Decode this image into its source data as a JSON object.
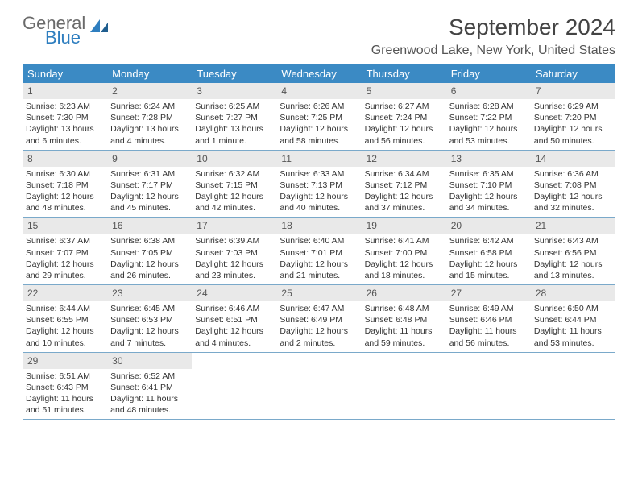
{
  "logo": {
    "word1": "General",
    "word2": "Blue"
  },
  "title": "September 2024",
  "location": "Greenwood Lake, New York, United States",
  "colors": {
    "header_bg": "#3b8ac4",
    "header_text": "#ffffff",
    "daynum_bg": "#e9e9e9",
    "border": "#7aa9ca",
    "logo_gray": "#6a6a6a",
    "logo_blue": "#2e7ebf"
  },
  "weekdays": [
    "Sunday",
    "Monday",
    "Tuesday",
    "Wednesday",
    "Thursday",
    "Friday",
    "Saturday"
  ],
  "weeks": [
    [
      {
        "n": "1",
        "sr": "Sunrise: 6:23 AM",
        "ss": "Sunset: 7:30 PM",
        "d1": "Daylight: 13 hours",
        "d2": "and 6 minutes."
      },
      {
        "n": "2",
        "sr": "Sunrise: 6:24 AM",
        "ss": "Sunset: 7:28 PM",
        "d1": "Daylight: 13 hours",
        "d2": "and 4 minutes."
      },
      {
        "n": "3",
        "sr": "Sunrise: 6:25 AM",
        "ss": "Sunset: 7:27 PM",
        "d1": "Daylight: 13 hours",
        "d2": "and 1 minute."
      },
      {
        "n": "4",
        "sr": "Sunrise: 6:26 AM",
        "ss": "Sunset: 7:25 PM",
        "d1": "Daylight: 12 hours",
        "d2": "and 58 minutes."
      },
      {
        "n": "5",
        "sr": "Sunrise: 6:27 AM",
        "ss": "Sunset: 7:24 PM",
        "d1": "Daylight: 12 hours",
        "d2": "and 56 minutes."
      },
      {
        "n": "6",
        "sr": "Sunrise: 6:28 AM",
        "ss": "Sunset: 7:22 PM",
        "d1": "Daylight: 12 hours",
        "d2": "and 53 minutes."
      },
      {
        "n": "7",
        "sr": "Sunrise: 6:29 AM",
        "ss": "Sunset: 7:20 PM",
        "d1": "Daylight: 12 hours",
        "d2": "and 50 minutes."
      }
    ],
    [
      {
        "n": "8",
        "sr": "Sunrise: 6:30 AM",
        "ss": "Sunset: 7:18 PM",
        "d1": "Daylight: 12 hours",
        "d2": "and 48 minutes."
      },
      {
        "n": "9",
        "sr": "Sunrise: 6:31 AM",
        "ss": "Sunset: 7:17 PM",
        "d1": "Daylight: 12 hours",
        "d2": "and 45 minutes."
      },
      {
        "n": "10",
        "sr": "Sunrise: 6:32 AM",
        "ss": "Sunset: 7:15 PM",
        "d1": "Daylight: 12 hours",
        "d2": "and 42 minutes."
      },
      {
        "n": "11",
        "sr": "Sunrise: 6:33 AM",
        "ss": "Sunset: 7:13 PM",
        "d1": "Daylight: 12 hours",
        "d2": "and 40 minutes."
      },
      {
        "n": "12",
        "sr": "Sunrise: 6:34 AM",
        "ss": "Sunset: 7:12 PM",
        "d1": "Daylight: 12 hours",
        "d2": "and 37 minutes."
      },
      {
        "n": "13",
        "sr": "Sunrise: 6:35 AM",
        "ss": "Sunset: 7:10 PM",
        "d1": "Daylight: 12 hours",
        "d2": "and 34 minutes."
      },
      {
        "n": "14",
        "sr": "Sunrise: 6:36 AM",
        "ss": "Sunset: 7:08 PM",
        "d1": "Daylight: 12 hours",
        "d2": "and 32 minutes."
      }
    ],
    [
      {
        "n": "15",
        "sr": "Sunrise: 6:37 AM",
        "ss": "Sunset: 7:07 PM",
        "d1": "Daylight: 12 hours",
        "d2": "and 29 minutes."
      },
      {
        "n": "16",
        "sr": "Sunrise: 6:38 AM",
        "ss": "Sunset: 7:05 PM",
        "d1": "Daylight: 12 hours",
        "d2": "and 26 minutes."
      },
      {
        "n": "17",
        "sr": "Sunrise: 6:39 AM",
        "ss": "Sunset: 7:03 PM",
        "d1": "Daylight: 12 hours",
        "d2": "and 23 minutes."
      },
      {
        "n": "18",
        "sr": "Sunrise: 6:40 AM",
        "ss": "Sunset: 7:01 PM",
        "d1": "Daylight: 12 hours",
        "d2": "and 21 minutes."
      },
      {
        "n": "19",
        "sr": "Sunrise: 6:41 AM",
        "ss": "Sunset: 7:00 PM",
        "d1": "Daylight: 12 hours",
        "d2": "and 18 minutes."
      },
      {
        "n": "20",
        "sr": "Sunrise: 6:42 AM",
        "ss": "Sunset: 6:58 PM",
        "d1": "Daylight: 12 hours",
        "d2": "and 15 minutes."
      },
      {
        "n": "21",
        "sr": "Sunrise: 6:43 AM",
        "ss": "Sunset: 6:56 PM",
        "d1": "Daylight: 12 hours",
        "d2": "and 13 minutes."
      }
    ],
    [
      {
        "n": "22",
        "sr": "Sunrise: 6:44 AM",
        "ss": "Sunset: 6:55 PM",
        "d1": "Daylight: 12 hours",
        "d2": "and 10 minutes."
      },
      {
        "n": "23",
        "sr": "Sunrise: 6:45 AM",
        "ss": "Sunset: 6:53 PM",
        "d1": "Daylight: 12 hours",
        "d2": "and 7 minutes."
      },
      {
        "n": "24",
        "sr": "Sunrise: 6:46 AM",
        "ss": "Sunset: 6:51 PM",
        "d1": "Daylight: 12 hours",
        "d2": "and 4 minutes."
      },
      {
        "n": "25",
        "sr": "Sunrise: 6:47 AM",
        "ss": "Sunset: 6:49 PM",
        "d1": "Daylight: 12 hours",
        "d2": "and 2 minutes."
      },
      {
        "n": "26",
        "sr": "Sunrise: 6:48 AM",
        "ss": "Sunset: 6:48 PM",
        "d1": "Daylight: 11 hours",
        "d2": "and 59 minutes."
      },
      {
        "n": "27",
        "sr": "Sunrise: 6:49 AM",
        "ss": "Sunset: 6:46 PM",
        "d1": "Daylight: 11 hours",
        "d2": "and 56 minutes."
      },
      {
        "n": "28",
        "sr": "Sunrise: 6:50 AM",
        "ss": "Sunset: 6:44 PM",
        "d1": "Daylight: 11 hours",
        "d2": "and 53 minutes."
      }
    ],
    [
      {
        "n": "29",
        "sr": "Sunrise: 6:51 AM",
        "ss": "Sunset: 6:43 PM",
        "d1": "Daylight: 11 hours",
        "d2": "and 51 minutes."
      },
      {
        "n": "30",
        "sr": "Sunrise: 6:52 AM",
        "ss": "Sunset: 6:41 PM",
        "d1": "Daylight: 11 hours",
        "d2": "and 48 minutes."
      },
      null,
      null,
      null,
      null,
      null
    ]
  ]
}
